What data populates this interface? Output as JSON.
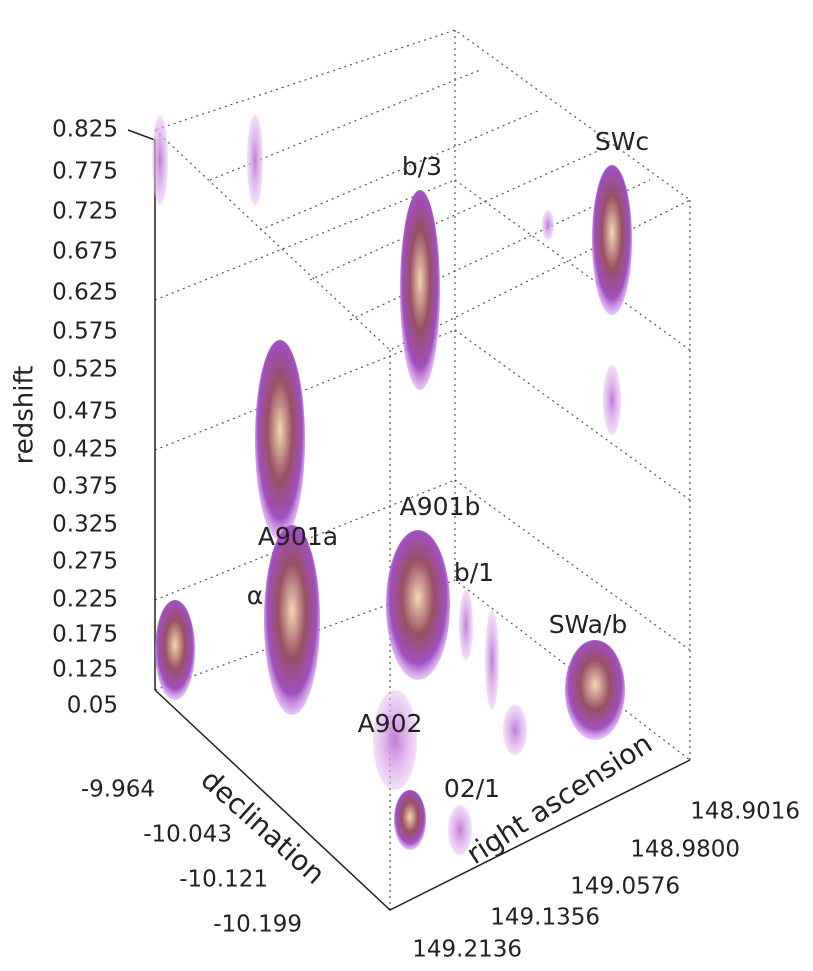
{
  "axes": {
    "redshift": {
      "label": "redshift",
      "ticks": [
        "0.825",
        "0.775",
        "0.725",
        "0.675",
        "0.625",
        "0.575",
        "0.525",
        "0.475",
        "0.425",
        "0.375",
        "0.325",
        "0.275",
        "0.225",
        "0.175",
        "0.125",
        "0.05"
      ]
    },
    "declination": {
      "label": "declination",
      "ticks": [
        "-9.964",
        "-10.043",
        "-10.121",
        "-10.199"
      ]
    },
    "right_ascension": {
      "label": "right ascension",
      "ticks": [
        "148.9016",
        "148.9800",
        "149.0576",
        "149.1356",
        "149.2136"
      ]
    }
  },
  "annotations": [
    "b/3",
    "SWc",
    "A901b",
    "A901a",
    "b/1",
    "α",
    "SWa/b",
    "A902",
    "02/1"
  ]
}
